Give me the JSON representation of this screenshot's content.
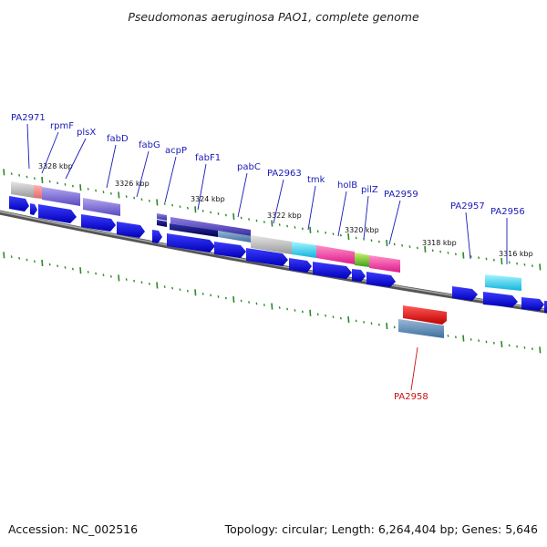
{
  "title": "Pseudomonas aeruginosa PAO1, complete genome",
  "footer": {
    "accession": "Accession: NC_002516",
    "summary": "Topology: circular; Length: 6,264,404 bp; Genes: 5,646"
  },
  "scale_labels": [
    "3328 kbp",
    "3326 kbp",
    "3324 kbp",
    "3322 kbp",
    "3320 kbp",
    "3318 kbp",
    "3316 kbp"
  ],
  "gene_labels": [
    "PA2971",
    "rpmF",
    "plsX",
    "fabD",
    "fabG",
    "acpP",
    "fabF1",
    "pabC",
    "PA2963",
    "tmk",
    "holB",
    "pilZ",
    "PA2959",
    "PA2957",
    "PA2956",
    "PA2958"
  ],
  "colors": {
    "arrow_blue": "#0d0de6",
    "backbone": "#777777",
    "tick": "#2a8a2a",
    "label_blue": "#1a1ab8",
    "label_red": "#cc1111"
  }
}
